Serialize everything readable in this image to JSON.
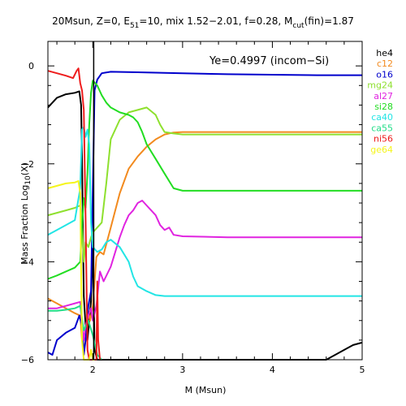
{
  "chart_data": {
    "type": "line",
    "title_parts": {
      "a": "20Msun, Z=0, E",
      "a_sub": "51",
      "b": "=10, mix 1.52−2.01, f=0.28, M",
      "b_sub": "cut",
      "c": "(fin)=1.87"
    },
    "xlabel": "M (Msun)",
    "ylabel_parts": {
      "a": "Mass Fraction Log",
      "sub": "10",
      "b": "(X)"
    },
    "annotation": "Ye=0.4997 (incom−Si)",
    "xlim": [
      1.5,
      5.0
    ],
    "ylim": [
      -6.0,
      0.5
    ],
    "x_ticks": [
      2,
      3,
      4,
      5
    ],
    "x_tick_labels": [
      "2",
      "3",
      "4",
      "5"
    ],
    "y_ticks": [
      0,
      -2,
      -4,
      -6
    ],
    "y_tick_labels": [
      "0",
      "−2",
      "−4",
      "−6"
    ],
    "mass_cut": 2.01,
    "legend_position": "right",
    "series": [
      {
        "name": "he4",
        "color": "#000000",
        "points": [
          [
            1.5,
            -0.85
          ],
          [
            1.6,
            -0.65
          ],
          [
            1.7,
            -0.58
          ],
          [
            1.8,
            -0.55
          ],
          [
            1.85,
            -0.52
          ],
          [
            1.87,
            -0.8
          ],
          [
            1.88,
            -1.9
          ],
          [
            1.9,
            -4.7
          ],
          [
            1.92,
            -5.3
          ],
          [
            1.94,
            -5.6
          ],
          [
            1.96,
            -5.2
          ],
          [
            1.98,
            -4.8
          ],
          [
            2.0,
            -3.6
          ],
          [
            2.02,
            -5.8
          ],
          [
            2.05,
            -6.0
          ],
          [
            2.1,
            -6.0
          ],
          [
            4.6,
            -6.0
          ],
          [
            4.7,
            -5.9
          ],
          [
            4.8,
            -5.8
          ],
          [
            4.9,
            -5.7
          ],
          [
            5.0,
            -5.65
          ]
        ]
      },
      {
        "name": "c12",
        "color": "#f28a1e",
        "points": [
          [
            1.5,
            -4.75
          ],
          [
            1.6,
            -4.85
          ],
          [
            1.7,
            -4.95
          ],
          [
            1.8,
            -5.05
          ],
          [
            1.86,
            -5.1
          ],
          [
            1.88,
            -5.6
          ],
          [
            1.9,
            -5.8
          ],
          [
            1.93,
            -5.5
          ],
          [
            1.95,
            -5.0
          ],
          [
            1.97,
            -5.2
          ],
          [
            2.0,
            -4.9
          ],
          [
            2.04,
            -3.9
          ],
          [
            2.08,
            -3.8
          ],
          [
            2.12,
            -3.85
          ],
          [
            2.2,
            -3.3
          ],
          [
            2.3,
            -2.6
          ],
          [
            2.4,
            -2.1
          ],
          [
            2.5,
            -1.85
          ],
          [
            2.6,
            -1.65
          ],
          [
            2.7,
            -1.5
          ],
          [
            2.8,
            -1.4
          ],
          [
            2.9,
            -1.36
          ],
          [
            3.0,
            -1.35
          ],
          [
            3.5,
            -1.35
          ],
          [
            4.0,
            -1.35
          ],
          [
            4.5,
            -1.35
          ],
          [
            5.0,
            -1.35
          ]
        ]
      },
      {
        "name": "o16",
        "color": "#0000cc",
        "points": [
          [
            1.5,
            -5.85
          ],
          [
            1.55,
            -5.9
          ],
          [
            1.6,
            -5.6
          ],
          [
            1.7,
            -5.45
          ],
          [
            1.8,
            -5.35
          ],
          [
            1.85,
            -5.1
          ],
          [
            1.88,
            -5.3
          ],
          [
            1.9,
            -5.9
          ],
          [
            1.92,
            -5.6
          ],
          [
            1.95,
            -4.9
          ],
          [
            1.98,
            -4.6
          ],
          [
            2.0,
            -2.5
          ],
          [
            2.02,
            -0.5
          ],
          [
            2.05,
            -0.28
          ],
          [
            2.1,
            -0.15
          ],
          [
            2.2,
            -0.12
          ],
          [
            2.5,
            -0.13
          ],
          [
            3.0,
            -0.15
          ],
          [
            3.5,
            -0.17
          ],
          [
            4.0,
            -0.18
          ],
          [
            4.5,
            -0.19
          ],
          [
            5.0,
            -0.19
          ]
        ]
      },
      {
        "name": "mg24",
        "color": "#8ee02e",
        "points": [
          [
            1.5,
            -3.05
          ],
          [
            1.6,
            -3.0
          ],
          [
            1.7,
            -2.95
          ],
          [
            1.8,
            -2.9
          ],
          [
            1.86,
            -2.85
          ],
          [
            1.88,
            -3.2
          ],
          [
            1.9,
            -4.0
          ],
          [
            1.92,
            -3.6
          ],
          [
            1.95,
            -3.7
          ],
          [
            1.98,
            -3.5
          ],
          [
            2.0,
            -3.4
          ],
          [
            2.05,
            -3.3
          ],
          [
            2.1,
            -3.2
          ],
          [
            2.15,
            -2.4
          ],
          [
            2.2,
            -1.5
          ],
          [
            2.3,
            -1.1
          ],
          [
            2.4,
            -0.95
          ],
          [
            2.5,
            -0.9
          ],
          [
            2.6,
            -0.85
          ],
          [
            2.7,
            -1.0
          ],
          [
            2.75,
            -1.2
          ],
          [
            2.8,
            -1.35
          ],
          [
            2.9,
            -1.38
          ],
          [
            3.0,
            -1.4
          ],
          [
            3.5,
            -1.4
          ],
          [
            4.0,
            -1.4
          ],
          [
            4.5,
            -1.4
          ],
          [
            5.0,
            -1.4
          ]
        ]
      },
      {
        "name": "al27",
        "color": "#e024e0",
        "points": [
          [
            1.5,
            -4.95
          ],
          [
            1.6,
            -4.95
          ],
          [
            1.7,
            -4.9
          ],
          [
            1.8,
            -4.85
          ],
          [
            1.86,
            -4.82
          ],
          [
            1.88,
            -5.3
          ],
          [
            1.9,
            -5.6
          ],
          [
            1.92,
            -5.3
          ],
          [
            1.95,
            -5.1
          ],
          [
            1.98,
            -4.95
          ],
          [
            2.0,
            -5.2
          ],
          [
            2.04,
            -4.9
          ],
          [
            2.08,
            -4.2
          ],
          [
            2.12,
            -4.4
          ],
          [
            2.2,
            -4.1
          ],
          [
            2.3,
            -3.5
          ],
          [
            2.35,
            -3.25
          ],
          [
            2.4,
            -3.05
          ],
          [
            2.45,
            -2.95
          ],
          [
            2.5,
            -2.8
          ],
          [
            2.55,
            -2.75
          ],
          [
            2.6,
            -2.85
          ],
          [
            2.65,
            -2.95
          ],
          [
            2.7,
            -3.05
          ],
          [
            2.75,
            -3.25
          ],
          [
            2.8,
            -3.35
          ],
          [
            2.85,
            -3.3
          ],
          [
            2.9,
            -3.45
          ],
          [
            3.0,
            -3.48
          ],
          [
            3.5,
            -3.5
          ],
          [
            4.0,
            -3.5
          ],
          [
            4.5,
            -3.5
          ],
          [
            5.0,
            -3.5
          ]
        ]
      },
      {
        "name": "si28",
        "color": "#22dd22",
        "points": [
          [
            1.5,
            -4.35
          ],
          [
            1.6,
            -4.28
          ],
          [
            1.7,
            -4.2
          ],
          [
            1.8,
            -4.12
          ],
          [
            1.86,
            -4.0
          ],
          [
            1.88,
            -3.3
          ],
          [
            1.9,
            -2.7
          ],
          [
            1.92,
            -2.9
          ],
          [
            1.94,
            -2.2
          ],
          [
            1.96,
            -1.2
          ],
          [
            1.98,
            -0.55
          ],
          [
            2.0,
            -0.3
          ],
          [
            2.05,
            -0.4
          ],
          [
            2.1,
            -0.6
          ],
          [
            2.15,
            -0.75
          ],
          [
            2.2,
            -0.85
          ],
          [
            2.3,
            -0.95
          ],
          [
            2.4,
            -1.0
          ],
          [
            2.45,
            -1.05
          ],
          [
            2.5,
            -1.15
          ],
          [
            2.55,
            -1.35
          ],
          [
            2.6,
            -1.6
          ],
          [
            2.7,
            -1.9
          ],
          [
            2.8,
            -2.2
          ],
          [
            2.9,
            -2.5
          ],
          [
            3.0,
            -2.55
          ],
          [
            3.5,
            -2.55
          ],
          [
            4.0,
            -2.55
          ],
          [
            4.5,
            -2.55
          ],
          [
            5.0,
            -2.55
          ]
        ]
      },
      {
        "name": "ca40",
        "color": "#22e5e5",
        "points": [
          [
            1.5,
            -3.45
          ],
          [
            1.6,
            -3.35
          ],
          [
            1.7,
            -3.25
          ],
          [
            1.8,
            -3.15
          ],
          [
            1.86,
            -2.5
          ],
          [
            1.88,
            -1.3
          ],
          [
            1.9,
            -1.25
          ],
          [
            1.92,
            -1.45
          ],
          [
            1.94,
            -1.3
          ],
          [
            1.96,
            -1.6
          ],
          [
            1.98,
            -3.2
          ],
          [
            2.0,
            -3.7
          ],
          [
            2.05,
            -3.8
          ],
          [
            2.1,
            -3.75
          ],
          [
            2.15,
            -3.6
          ],
          [
            2.2,
            -3.55
          ],
          [
            2.3,
            -3.7
          ],
          [
            2.4,
            -4.0
          ],
          [
            2.45,
            -4.3
          ],
          [
            2.5,
            -4.5
          ],
          [
            2.6,
            -4.6
          ],
          [
            2.7,
            -4.68
          ],
          [
            2.8,
            -4.7
          ],
          [
            3.0,
            -4.7
          ],
          [
            3.5,
            -4.7
          ],
          [
            4.0,
            -4.7
          ],
          [
            4.5,
            -4.7
          ],
          [
            5.0,
            -4.7
          ]
        ]
      },
      {
        "name": "ca55",
        "color": "#22dd88",
        "points": [
          [
            1.5,
            -5.0
          ],
          [
            1.6,
            -5.0
          ],
          [
            1.7,
            -4.98
          ],
          [
            1.8,
            -4.95
          ],
          [
            1.86,
            -4.9
          ],
          [
            1.9,
            -5.4
          ],
          [
            1.95,
            -5.2
          ],
          [
            2.0,
            -5.5
          ],
          [
            2.05,
            -5.9
          ],
          [
            2.1,
            -6.0
          ]
        ]
      },
      {
        "name": "ni56",
        "color": "#ee1c1c",
        "points": [
          [
            1.5,
            -0.1
          ],
          [
            1.6,
            -0.15
          ],
          [
            1.7,
            -0.2
          ],
          [
            1.78,
            -0.25
          ],
          [
            1.82,
            -0.1
          ],
          [
            1.84,
            -0.05
          ],
          [
            1.86,
            -0.35
          ],
          [
            1.88,
            -0.5
          ],
          [
            1.9,
            -0.9
          ],
          [
            1.92,
            -3.1
          ],
          [
            1.94,
            -5.8
          ],
          [
            1.96,
            -6.0
          ],
          [
            2.04,
            -6.0
          ],
          [
            2.05,
            -4.4
          ],
          [
            2.06,
            -5.6
          ],
          [
            2.08,
            -6.0
          ]
        ]
      },
      {
        "name": "ge64",
        "color": "#f5f51c",
        "points": [
          [
            1.5,
            -2.5
          ],
          [
            1.6,
            -2.45
          ],
          [
            1.7,
            -2.4
          ],
          [
            1.8,
            -2.38
          ],
          [
            1.84,
            -2.35
          ],
          [
            1.86,
            -2.6
          ],
          [
            1.88,
            -5.6
          ],
          [
            1.9,
            -6.0
          ],
          [
            1.96,
            -6.0
          ],
          [
            1.98,
            -5.8
          ],
          [
            2.0,
            -6.0
          ],
          [
            2.02,
            -6.0
          ]
        ]
      }
    ]
  }
}
